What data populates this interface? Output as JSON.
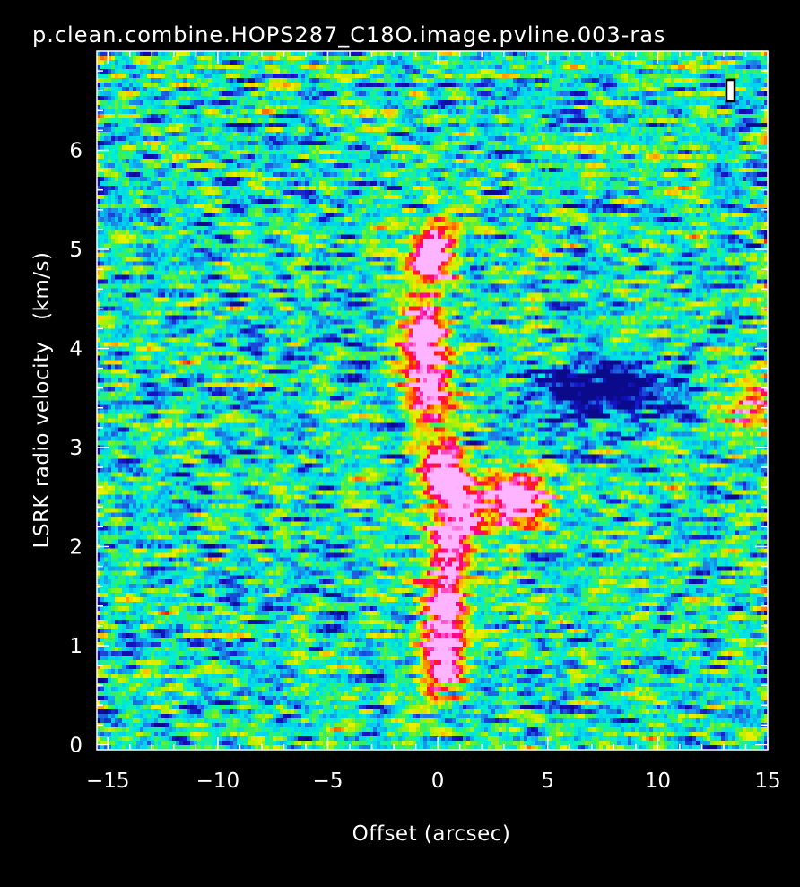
{
  "window_title": "p.clean.combine.HOPS287_C18O.image.pvline.003-ras",
  "chart_data": {
    "type": "heatmap",
    "title": "p.clean.combine.HOPS287_C18O.image.pvline.003-ras",
    "xlabel": "Offset (arcsec)",
    "ylabel": "LSRK radio velocity   (km/s)",
    "xlim": [
      -15.5,
      15
    ],
    "ylim": [
      -0.05,
      7.0
    ],
    "x_ticks": [
      -15,
      -10,
      -5,
      0,
      5,
      10,
      15
    ],
    "x_tick_labels": [
      "−15",
      "−10",
      "−5",
      "0",
      "5",
      "10",
      "15"
    ],
    "y_ticks": [
      0,
      1,
      2,
      3,
      4,
      5,
      6
    ],
    "y_tick_labels": [
      "0",
      "1",
      "2",
      "3",
      "4",
      "5",
      "6"
    ],
    "colormap": [
      "#0a0a8a",
      "#1414c8",
      "#1e78e6",
      "#00d2f0",
      "#00f0d0",
      "#3cf050",
      "#b4f000",
      "#f0f000",
      "#ffa000",
      "#ff2000",
      "#ff0096",
      "#ffb4ff"
    ],
    "emission_ridge": [
      {
        "velocity": 0.7,
        "offset": 0.2,
        "intensity": 0.8
      },
      {
        "velocity": 1.0,
        "offset": 0.3,
        "intensity": 0.92
      },
      {
        "velocity": 1.3,
        "offset": 0.3,
        "intensity": 0.9
      },
      {
        "velocity": 1.6,
        "offset": 0.4,
        "intensity": 0.9
      },
      {
        "velocity": 2.0,
        "offset": 0.5,
        "intensity": 0.96
      },
      {
        "velocity": 2.3,
        "offset": 1.0,
        "intensity": 0.95
      },
      {
        "velocity": 2.6,
        "offset": 0.6,
        "intensity": 0.95
      },
      {
        "velocity": 2.85,
        "offset": 0.2,
        "intensity": 0.92
      },
      {
        "velocity": 3.4,
        "offset": -0.3,
        "intensity": 0.82
      },
      {
        "velocity": 3.7,
        "offset": -0.5,
        "intensity": 0.88
      },
      {
        "velocity": 4.0,
        "offset": -0.5,
        "intensity": 0.98
      },
      {
        "velocity": 4.3,
        "offset": -0.6,
        "intensity": 0.9
      },
      {
        "velocity": 4.85,
        "offset": -0.4,
        "intensity": 0.86
      },
      {
        "velocity": 5.05,
        "offset": -0.2,
        "intensity": 0.86
      }
    ],
    "secondary_features": [
      {
        "velocity": 2.5,
        "offset": 3.0,
        "intensity": 0.85
      },
      {
        "velocity": 2.45,
        "offset": 4.2,
        "intensity": 0.8
      },
      {
        "velocity": 3.4,
        "offset": 14.0,
        "intensity": 0.72
      },
      {
        "velocity": 3.6,
        "offset": 7.5,
        "intensity": -0.85
      }
    ]
  }
}
